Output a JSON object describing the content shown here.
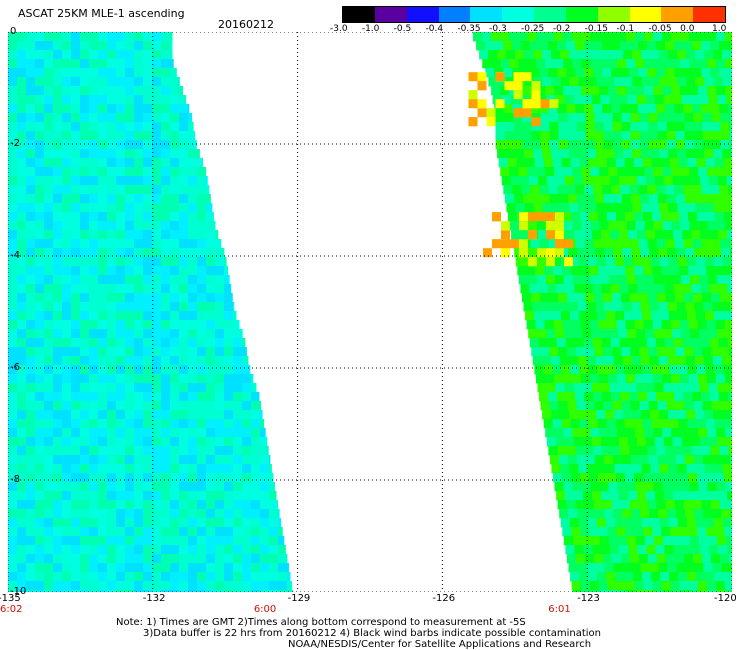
{
  "header": {
    "title": "ASCAT 25KM MLE-1 ascending",
    "date": "20160212"
  },
  "colorbar": {
    "ticks": [
      "-3.0",
      "-1.0",
      "-0.5",
      "-0.4",
      "-0.35",
      "-0.3",
      "-0.25",
      "-0.2",
      "-0.15",
      "-0.1",
      "-0.05",
      "0.0",
      "1.0"
    ],
    "colors": [
      "#000000",
      "#5a00a0",
      "#1010ff",
      "#0080ff",
      "#00e0ff",
      "#00ffe0",
      "#00ff90",
      "#00ff20",
      "#90ff00",
      "#ffff00",
      "#ffa000",
      "#ff3000"
    ]
  },
  "map": {
    "lon_labels": [
      "-135",
      "-132",
      "-129",
      "-126",
      "-123",
      "-120"
    ],
    "lat_labels": [
      "0",
      "-2",
      "-4",
      "-6",
      "-8",
      "-10"
    ],
    "pass_times": [
      "6:02",
      "6:00",
      "6:01"
    ],
    "lon_range": [
      -135,
      -120
    ],
    "lat_range": [
      0,
      -10
    ],
    "swaths": [
      {
        "name": "west",
        "colors": [
          "#00ffd0",
          "#00ffe0",
          "#00ffb0",
          "#00f0ff",
          "#00e0ff"
        ],
        "edge": [
          [
            0,
            -131.6
          ],
          [
            0.5,
            -131.6
          ],
          [
            1.0,
            -131.4
          ],
          [
            1.5,
            -131.2
          ],
          [
            2.0,
            -131.1
          ],
          [
            2.5,
            -130.9
          ],
          [
            3.0,
            -130.8
          ],
          [
            3.5,
            -130.7
          ],
          [
            4.0,
            -130.5
          ],
          [
            4.5,
            -130.4
          ],
          [
            5.0,
            -130.3
          ],
          [
            5.5,
            -130.1
          ],
          [
            6.0,
            -130.0
          ],
          [
            6.5,
            -129.8
          ],
          [
            7.0,
            -129.7
          ],
          [
            7.5,
            -129.6
          ],
          [
            8.0,
            -129.5
          ],
          [
            8.5,
            -129.4
          ],
          [
            9.0,
            -129.3
          ],
          [
            9.5,
            -129.2
          ],
          [
            10.0,
            -129.1
          ]
        ]
      },
      {
        "name": "east",
        "colors": [
          "#00ff60",
          "#00ff20",
          "#30ff00",
          "#00ffa0"
        ],
        "edge": [
          [
            0,
            -125.4
          ],
          [
            0.5,
            -125.2
          ],
          [
            1.0,
            -125.0
          ],
          [
            1.5,
            -124.9
          ],
          [
            2.0,
            -124.9
          ],
          [
            2.5,
            -124.8
          ],
          [
            3.0,
            -124.7
          ],
          [
            3.5,
            -124.6
          ],
          [
            4.0,
            -124.5
          ],
          [
            4.5,
            -124.4
          ],
          [
            5.0,
            -124.3
          ],
          [
            5.5,
            -124.2
          ],
          [
            6.0,
            -124.1
          ],
          [
            6.5,
            -124.0
          ],
          [
            7.0,
            -123.9
          ],
          [
            7.5,
            -123.8
          ],
          [
            8.0,
            -123.7
          ],
          [
            8.5,
            -123.6
          ],
          [
            9.0,
            -123.5
          ],
          [
            9.5,
            -123.4
          ],
          [
            10.0,
            -123.3
          ]
        ]
      }
    ],
    "hotspots": [
      {
        "lon": -124.6,
        "lat": -3.7,
        "value": "-0.05"
      },
      {
        "lon": -124.9,
        "lat": -1.2,
        "value": "-0.1"
      }
    ]
  },
  "footer": {
    "line1": "Note: 1) Times are GMT 2)Times along bottom correspond to measurement at -5S",
    "line2": "3)Data buffer is 22 hrs from 20160212 4) Black wind barbs indicate possible contamination",
    "line3": "NOAA/NESDIS/Center for Satellite Applications and Research"
  }
}
